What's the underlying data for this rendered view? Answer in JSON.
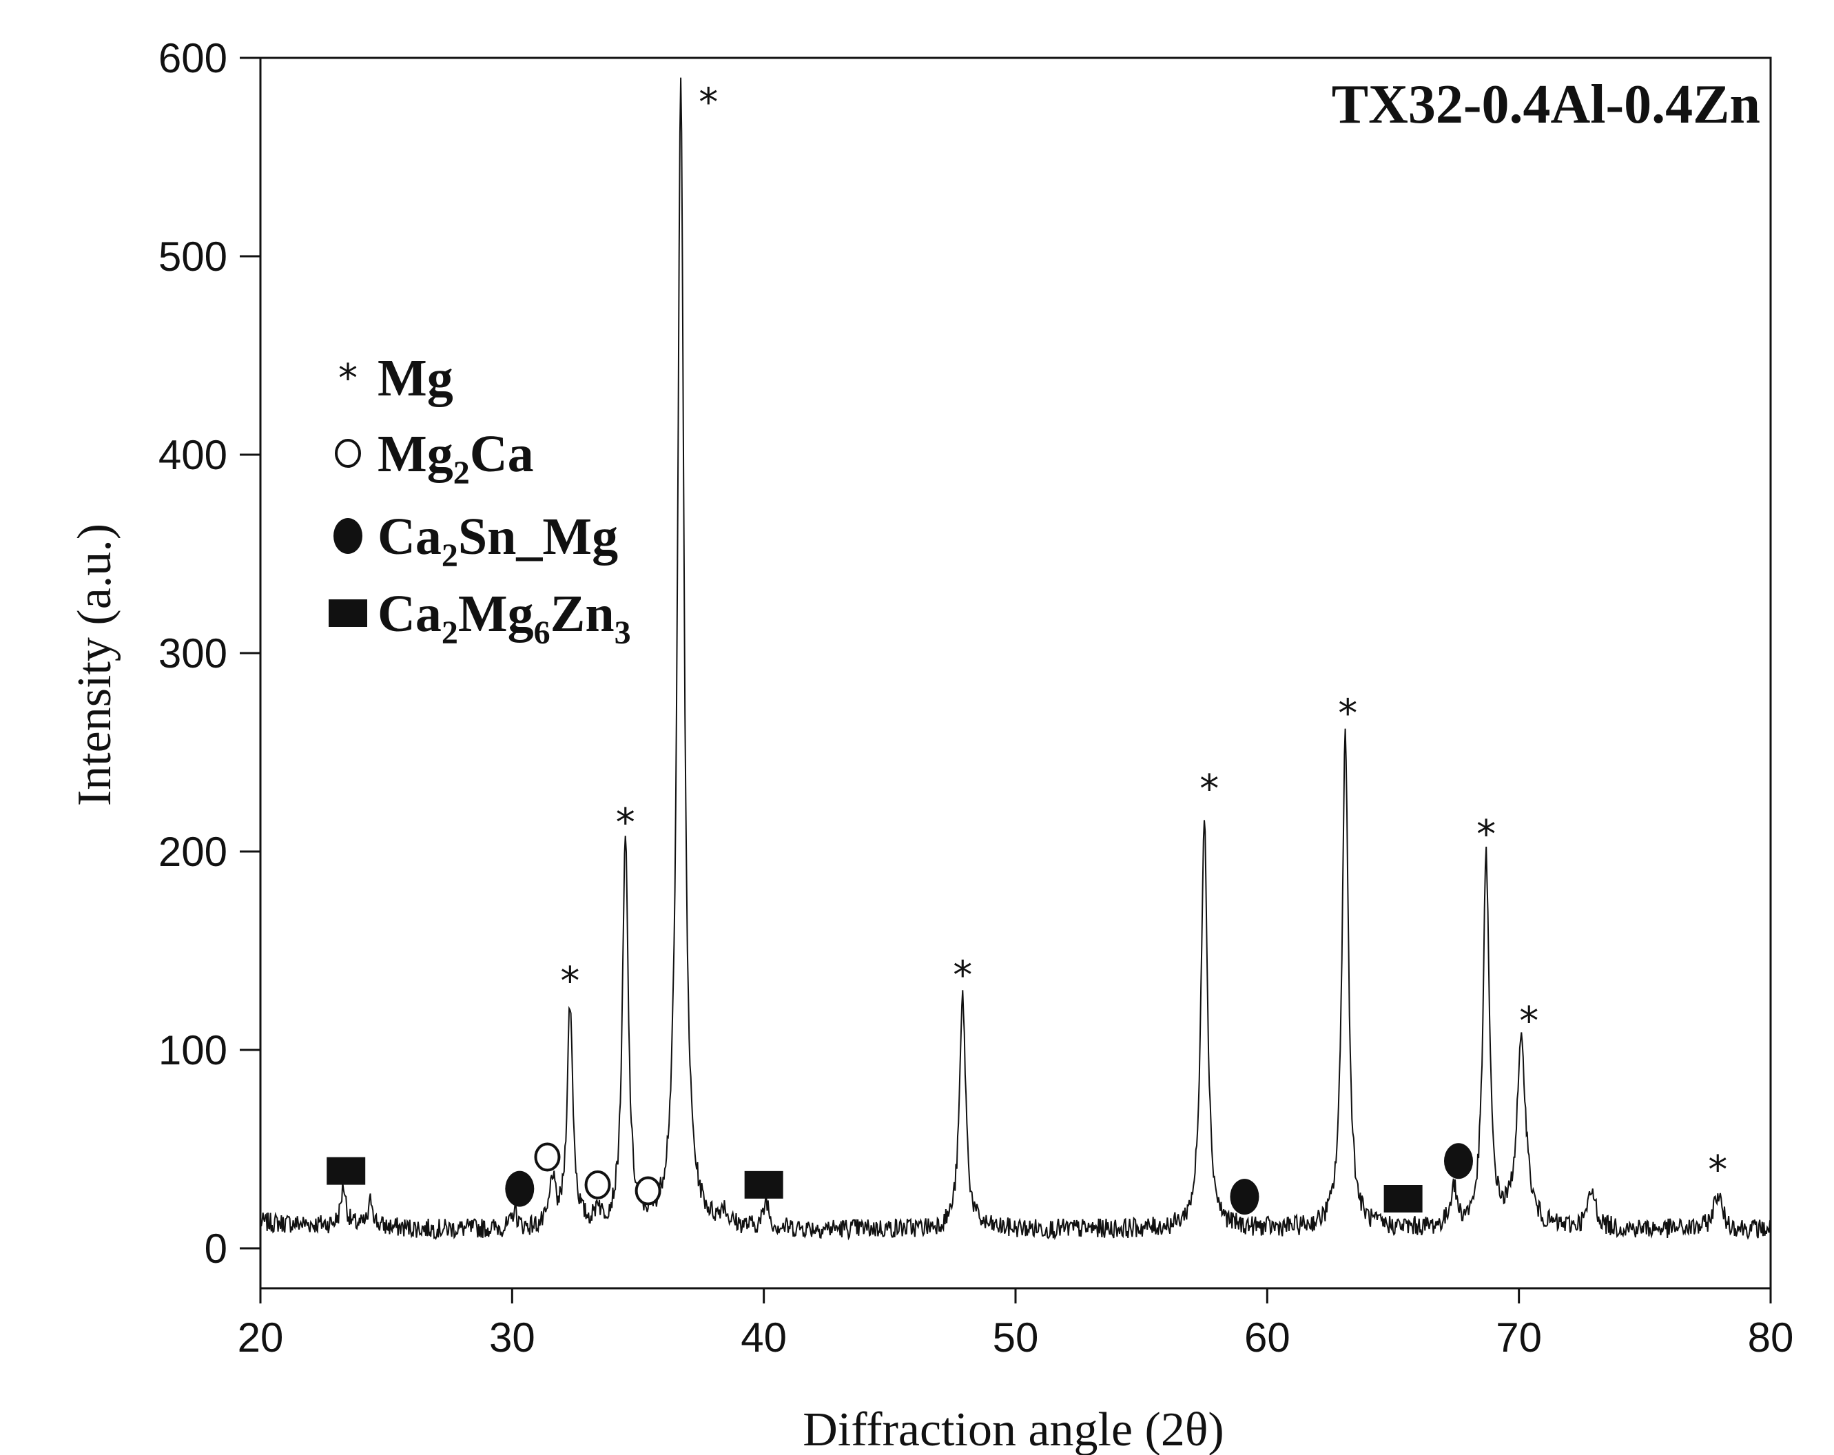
{
  "chart_data": {
    "type": "line",
    "title": "TX32-0.4Al-0.4Zn",
    "xlabel": "Diffraction angle (2θ)",
    "ylabel": "Intensity (a.u.)",
    "xlim": [
      20,
      80
    ],
    "ylim": [
      -20,
      600
    ],
    "xticks": [
      "20",
      "30",
      "40",
      "50",
      "60",
      "70",
      "80"
    ],
    "yticks": [
      "0",
      "100",
      "200",
      "300",
      "400",
      "500",
      "600"
    ],
    "baseline": 8,
    "peaks": [
      {
        "x": 23.3,
        "y": 28,
        "w": 0.12
      },
      {
        "x": 24.4,
        "y": 22,
        "w": 0.1
      },
      {
        "x": 30.1,
        "y": 18,
        "w": 0.1
      },
      {
        "x": 31.6,
        "y": 32,
        "w": 0.12
      },
      {
        "x": 32.3,
        "y": 120,
        "w": 0.14
      },
      {
        "x": 33.4,
        "y": 18,
        "w": 0.1
      },
      {
        "x": 34.5,
        "y": 202,
        "w": 0.14
      },
      {
        "x": 36.7,
        "y": 592,
        "w": 0.15
      },
      {
        "x": 38.4,
        "y": 16,
        "w": 0.15
      },
      {
        "x": 40.1,
        "y": 22,
        "w": 0.12
      },
      {
        "x": 47.9,
        "y": 125,
        "w": 0.15
      },
      {
        "x": 57.5,
        "y": 218,
        "w": 0.15
      },
      {
        "x": 63.1,
        "y": 258,
        "w": 0.15
      },
      {
        "x": 67.4,
        "y": 28,
        "w": 0.15
      },
      {
        "x": 68.7,
        "y": 194,
        "w": 0.15
      },
      {
        "x": 70.1,
        "y": 100,
        "w": 0.22
      },
      {
        "x": 72.9,
        "y": 26,
        "w": 0.2
      },
      {
        "x": 77.9,
        "y": 26,
        "w": 0.2
      }
    ],
    "legend": {
      "position": "left-middle",
      "entries": [
        {
          "marker": "asterisk",
          "parts": [
            {
              "t": "Mg"
            }
          ]
        },
        {
          "marker": "open-circle",
          "parts": [
            {
              "t": "Mg"
            },
            {
              "t": "2",
              "sub": true
            },
            {
              "t": "Ca"
            }
          ]
        },
        {
          "marker": "filled-circle",
          "parts": [
            {
              "t": "Ca"
            },
            {
              "t": "2",
              "sub": true
            },
            {
              "t": "Sn_Mg"
            }
          ]
        },
        {
          "marker": "filled-square",
          "parts": [
            {
              "t": "Ca"
            },
            {
              "t": "2",
              "sub": true
            },
            {
              "t": "Mg"
            },
            {
              "t": "6",
              "sub": true
            },
            {
              "t": "Zn"
            },
            {
              "t": "3",
              "sub": true
            }
          ]
        }
      ]
    },
    "annotations": [
      {
        "phase": "Mg",
        "marker": "asterisk",
        "x": 32.3,
        "y": 135
      },
      {
        "phase": "Mg",
        "marker": "asterisk",
        "x": 34.5,
        "y": 215
      },
      {
        "phase": "Mg",
        "marker": "asterisk",
        "x": 37.8,
        "y": 578
      },
      {
        "phase": "Mg",
        "marker": "asterisk",
        "x": 47.9,
        "y": 138
      },
      {
        "phase": "Mg",
        "marker": "asterisk",
        "x": 57.7,
        "y": 232
      },
      {
        "phase": "Mg",
        "marker": "asterisk",
        "x": 63.2,
        "y": 270
      },
      {
        "phase": "Mg",
        "marker": "asterisk",
        "x": 68.7,
        "y": 209
      },
      {
        "phase": "Mg",
        "marker": "asterisk",
        "x": 70.4,
        "y": 115
      },
      {
        "phase": "Mg",
        "marker": "asterisk",
        "x": 77.9,
        "y": 40
      },
      {
        "phase": "Mg2Ca",
        "marker": "open-circle",
        "x": 31.4,
        "y": 46
      },
      {
        "phase": "Mg2Ca",
        "marker": "open-circle",
        "x": 33.4,
        "y": 32
      },
      {
        "phase": "Mg2Ca",
        "marker": "open-circle",
        "x": 35.4,
        "y": 29
      },
      {
        "phase": "Ca2Sn_Mg",
        "marker": "filled-circle",
        "x": 30.3,
        "y": 30
      },
      {
        "phase": "Ca2Sn_Mg",
        "marker": "filled-circle",
        "x": 59.1,
        "y": 26
      },
      {
        "phase": "Ca2Sn_Mg",
        "marker": "filled-circle",
        "x": 67.6,
        "y": 44
      },
      {
        "phase": "Ca2Mg6Zn3",
        "marker": "filled-square",
        "x": 23.4,
        "y": 39
      },
      {
        "phase": "Ca2Mg6Zn3",
        "marker": "filled-square",
        "x": 40.0,
        "y": 32
      },
      {
        "phase": "Ca2Mg6Zn3",
        "marker": "filled-square",
        "x": 65.4,
        "y": 25
      }
    ]
  }
}
